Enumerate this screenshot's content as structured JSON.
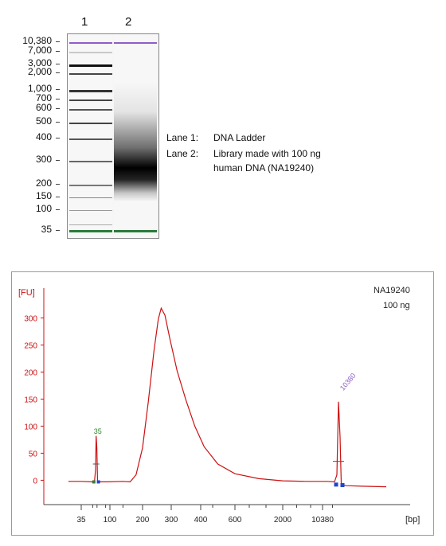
{
  "gel": {
    "lane_numbers": [
      "1",
      "2"
    ],
    "size_labels": [
      "10,380",
      "7,000",
      "3,000",
      "2,000",
      "1,000",
      "700",
      "600",
      "500",
      "400",
      "300",
      "200",
      "150",
      "100",
      "35"
    ],
    "legend": {
      "lane1_key": "Lane 1:",
      "lane1_text": "DNA Ladder",
      "lane2_key": "Lane 2:",
      "lane2_text_line1": "Library made with 100 ng",
      "lane2_text_line2": "human DNA (NA19240)"
    },
    "colors": {
      "upper_marker": "#8e5cc8",
      "lower_marker": "#2a7a3a"
    }
  },
  "chart_data": {
    "type": "line",
    "sample_name": "NA19240",
    "sample_amount": "100 ng",
    "ylabel": "[FU]",
    "xlabel": "[bp]",
    "yticks": [
      0,
      50,
      100,
      150,
      200,
      250,
      300
    ],
    "ylim": [
      -45,
      355
    ],
    "xticks": [
      "35",
      "100",
      "200",
      "300",
      "400",
      "600",
      "2000",
      "10380"
    ],
    "peak_labels": [
      "35",
      "10380"
    ],
    "series": [
      {
        "color": "#cc1111",
        "points": [
          [
            -0.45,
            -2
          ],
          [
            0.0,
            -2
          ],
          [
            0.38,
            -3
          ],
          [
            0.46,
            -3
          ],
          [
            0.5,
            20
          ],
          [
            0.52,
            82
          ],
          [
            0.545,
            60
          ],
          [
            0.57,
            -3
          ],
          [
            0.62,
            -3
          ],
          [
            0.9,
            -3
          ],
          [
            1.4,
            -2
          ],
          [
            1.62,
            -3
          ],
          [
            1.8,
            10
          ],
          [
            2.0,
            60
          ],
          [
            2.2,
            145
          ],
          [
            2.4,
            240
          ],
          [
            2.55,
            298
          ],
          [
            2.65,
            318
          ],
          [
            2.78,
            305
          ],
          [
            2.95,
            262
          ],
          [
            3.2,
            202
          ],
          [
            3.5,
            148
          ],
          [
            3.8,
            100
          ],
          [
            4.1,
            62
          ],
          [
            4.5,
            30
          ],
          [
            5.0,
            12
          ],
          [
            5.5,
            3
          ],
          [
            6.0,
            -1
          ],
          [
            6.6,
            -2
          ],
          [
            7.1,
            -2
          ],
          [
            7.3,
            -3
          ],
          [
            7.36,
            10
          ],
          [
            7.4,
            145
          ],
          [
            7.44,
            80
          ],
          [
            7.47,
            -8
          ],
          [
            7.6,
            -10
          ],
          [
            8.0,
            -11
          ],
          [
            8.6,
            -12
          ]
        ]
      }
    ]
  }
}
